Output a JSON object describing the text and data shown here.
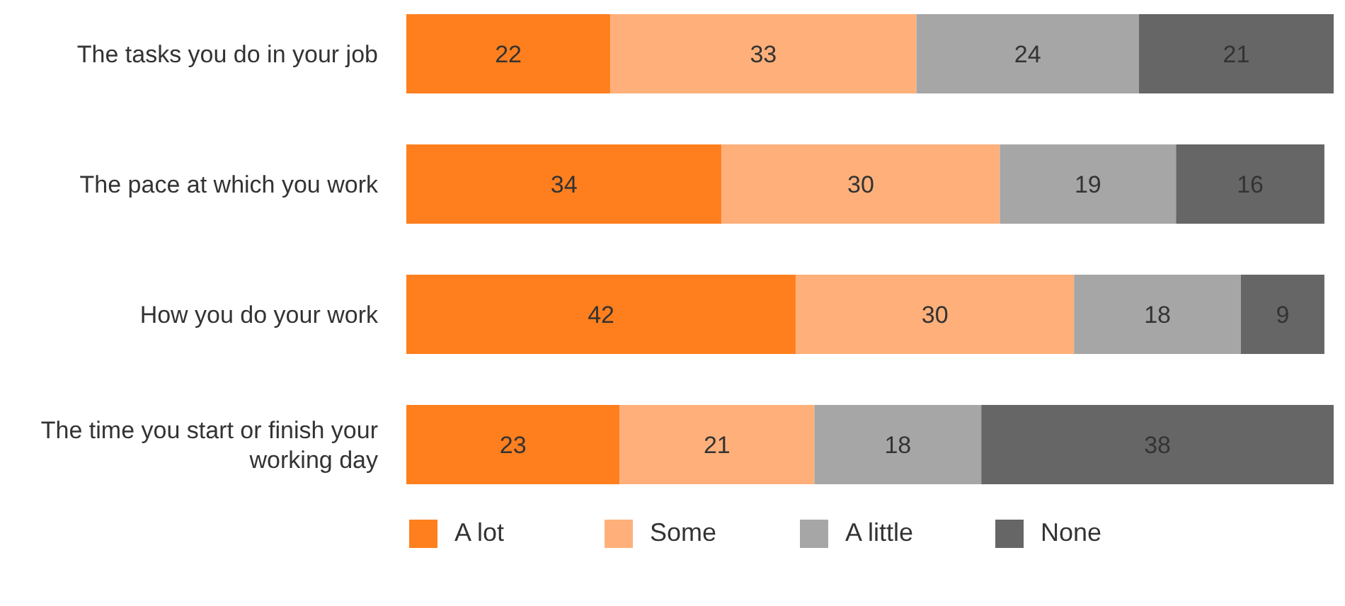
{
  "chart_data": {
    "type": "bar",
    "orientation": "horizontal",
    "stacked": true,
    "categories": [
      "The tasks you do in your job",
      "The pace at which you work",
      "How you do your work",
      "The time you start or finish your working day"
    ],
    "series": [
      {
        "name": "A lot",
        "color": "#ff7f1e",
        "values": [
          22,
          34,
          42,
          23
        ]
      },
      {
        "name": "Some",
        "color": "#ffb07a",
        "values": [
          33,
          30,
          30,
          21
        ]
      },
      {
        "name": "A little",
        "color": "#a6a6a6",
        "values": [
          24,
          19,
          18,
          18
        ]
      },
      {
        "name": "None",
        "color": "#666666",
        "values": [
          21,
          16,
          9,
          38
        ]
      }
    ],
    "xlim": [
      0,
      100
    ],
    "data_labels": true,
    "grid": false,
    "legend": "bottom",
    "tick_labels": "y"
  }
}
